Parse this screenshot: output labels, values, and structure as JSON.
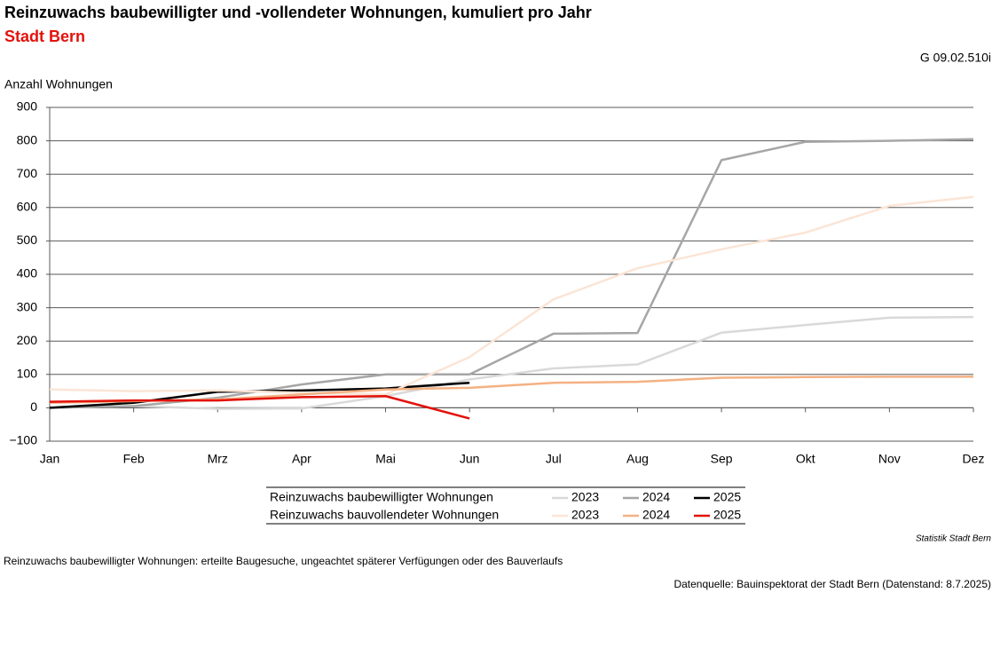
{
  "chart_data": {
    "type": "line",
    "title": "Reinzuwachs baubewilligter und -vollendeter Wohnungen, kumuliert pro Jahr",
    "subtitle": "Stadt Bern",
    "code": "G 09.02.510i",
    "y_label": "Anzahl Wohnungen",
    "categories": [
      "Jan",
      "Feb",
      "Mrz",
      "Apr",
      "Mai",
      "Jun",
      "Jul",
      "Aug",
      "Sep",
      "Okt",
      "Nov",
      "Dez"
    ],
    "ylim": [
      -100,
      900
    ],
    "yticks": [
      {
        "value": -100,
        "label": "−100"
      },
      0,
      100,
      200,
      300,
      400,
      500,
      600,
      700,
      800,
      900
    ],
    "grid": true,
    "series": [
      {
        "group": "Reinzuwachs baubewilligter Wohnungen",
        "name": "2023",
        "color": "#d9d9d9",
        "values": [
          0,
          5,
          -3,
          -2,
          35,
          85,
          118,
          130,
          225,
          248,
          270,
          272
        ]
      },
      {
        "group": "Reinzuwachs baubewilligter Wohnungen",
        "name": "2024",
        "color": "#a6a6a6",
        "values": [
          0,
          5,
          30,
          70,
          100,
          100,
          222,
          224,
          742,
          797,
          800,
          805
        ]
      },
      {
        "group": "Reinzuwachs baubewilligter Wohnungen",
        "name": "2025",
        "color": "#000000",
        "values": [
          0,
          15,
          48,
          52,
          58,
          75,
          null,
          null,
          null,
          null,
          null,
          null
        ]
      },
      {
        "group": "Reinzuwachs bauvollendeter Wohnungen",
        "name": "2023",
        "color": "#fbe5d6",
        "values": [
          55,
          50,
          52,
          45,
          40,
          152,
          325,
          418,
          475,
          525,
          605,
          632
        ]
      },
      {
        "group": "Reinzuwachs bauvollendeter Wohnungen",
        "name": "2024",
        "color": "#f4b183",
        "values": [
          15,
          20,
          25,
          40,
          55,
          60,
          75,
          78,
          90,
          92,
          93,
          93
        ]
      },
      {
        "group": "Reinzuwachs bauvollendeter Wohnungen",
        "name": "2025",
        "color": "#e3120b",
        "values": [
          18,
          22,
          22,
          32,
          35,
          -32,
          null,
          null,
          null,
          null,
          null,
          null
        ]
      }
    ],
    "source_note": "Statistik Stadt Bern",
    "footnote": "Reinzuwachs baubewilligter Wohnungen: erteilte Baugesuche, ungeachtet späterer Verfügungen oder des Bauverlaufs",
    "data_source": "Datenquelle: Bauinspektorat der Stadt Bern (Datenstand: 8.7.2025)"
  }
}
